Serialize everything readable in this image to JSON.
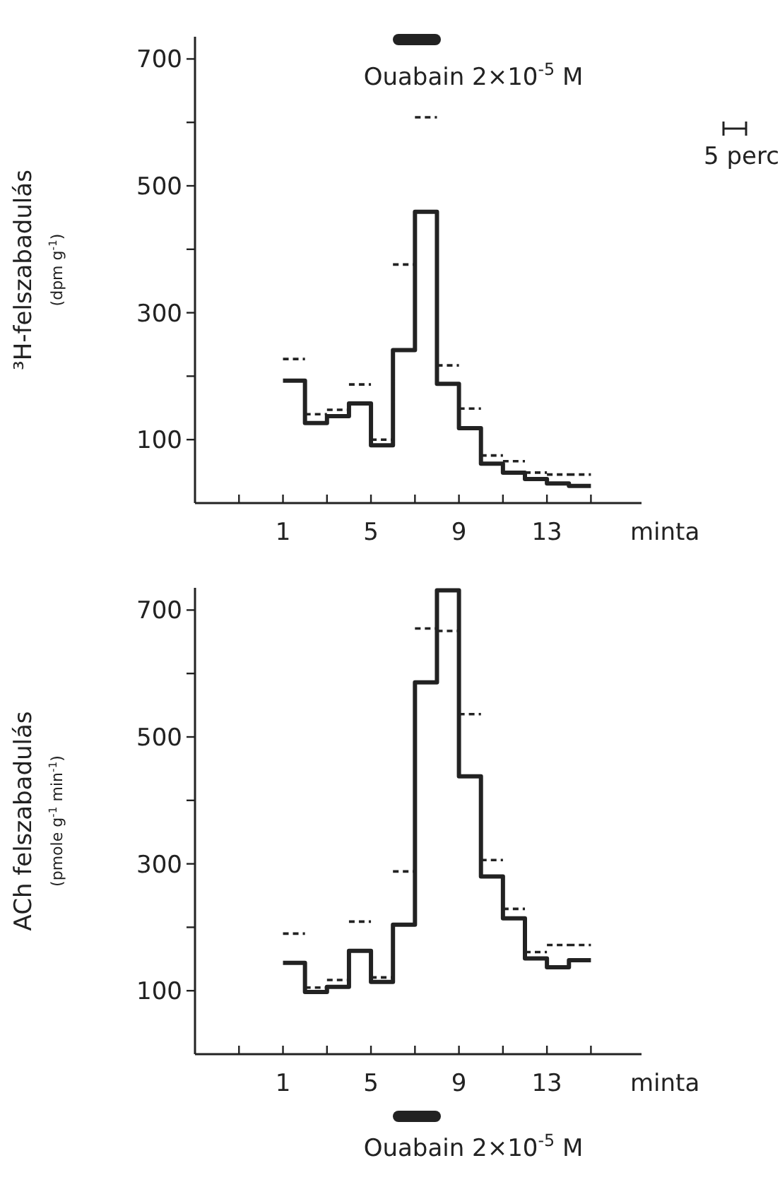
{
  "chart_data": [
    {
      "type": "step",
      "ylabel": "³H-felszabadulás\n(dpm g$^{-1}$)",
      "xlabel": "minta",
      "xlim": [
        -3,
        17.3
      ],
      "xticks": [
        {
          "value": -1,
          "label": null
        },
        1,
        {
          "value": 3,
          "label": null
        },
        5,
        {
          "value": 7,
          "label": null
        },
        9,
        {
          "value": 11,
          "label": null
        },
        13,
        {
          "value": 15,
          "label": null
        }
      ],
      "ylim": [
        0,
        735
      ],
      "yticks": [
        100,
        {
          "value": 200,
          "label": null
        },
        300,
        {
          "value": 400,
          "label": null
        },
        500,
        {
          "value": 600,
          "label": null
        },
        700
      ],
      "x": [
        1,
        2,
        3,
        4,
        5,
        6,
        7,
        8,
        9,
        10,
        11,
        12,
        13,
        14,
        15
      ],
      "series": [
        {
          "color": "#222222",
          "line_style": "solid",
          "values": [
            193,
            126,
            137,
            157,
            91,
            241,
            459,
            188,
            118,
            62,
            48,
            38,
            31,
            27,
            27
          ]
        },
        {
          "color": "#222222",
          "line_style": "dashed",
          "values": [
            227,
            140,
            147,
            187,
            100,
            376,
            608,
            217,
            149,
            75,
            66,
            48,
            45,
            45,
            45
          ]
        }
      ],
      "annotations": [
        "Ouabain 2×10$^{-5}$ M",
        "5 perc"
      ]
    },
    {
      "type": "step",
      "ylabel": "ACh felszabadulás\n(pmole g$^{-1}$ min$^{-1}$)",
      "xlabel": "minta",
      "xlim": [
        -3,
        17.3
      ],
      "xticks": [
        {
          "value": -1,
          "label": null
        },
        1,
        {
          "value": 3,
          "label": null
        },
        5,
        {
          "value": 7,
          "label": null
        },
        9,
        {
          "value": 11,
          "label": null
        },
        13,
        {
          "value": 15,
          "label": null
        }
      ],
      "ylim": [
        0,
        735
      ],
      "yticks": [
        100,
        {
          "value": 200,
          "label": null
        },
        300,
        {
          "value": 400,
          "label": null
        },
        500,
        {
          "value": 600,
          "label": null
        },
        700
      ],
      "x": [
        1,
        2,
        3,
        4,
        5,
        6,
        7,
        8,
        9,
        10,
        11,
        12,
        13,
        14,
        15
      ],
      "series": [
        {
          "color": "#222222",
          "line_style": "solid",
          "values": [
            144,
            98,
            106,
            163,
            114,
            204,
            586,
            731,
            438,
            280,
            214,
            151,
            137,
            148,
            148
          ]
        },
        {
          "color": "#222222",
          "line_style": "dashed",
          "values": [
            190,
            105,
            117,
            209,
            121,
            288,
            671,
            667,
            536,
            306,
            229,
            161,
            172,
            172,
            172
          ]
        }
      ],
      "annotations": [
        "Ouabain 2×10$^{-5}$ M"
      ]
    }
  ]
}
